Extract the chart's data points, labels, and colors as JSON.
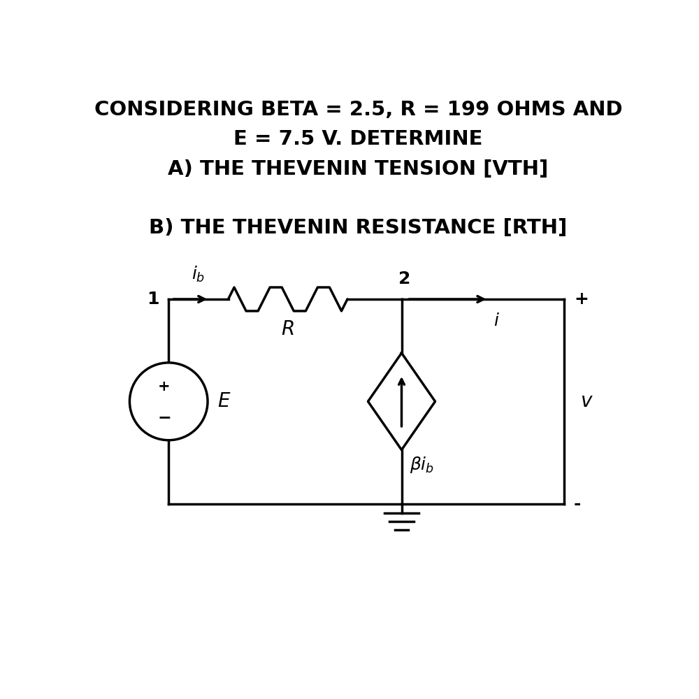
{
  "title_line1": "CONSIDERING BETA = 2.5, R = 199 OHMS AND",
  "title_line2": "E = 7.5 V. DETERMINE",
  "title_line3": "A) THE THEVENIN TENSION [VTH]",
  "title_line4": "B) THE THEVENIN RESISTANCE [RTH]",
  "bg_color": "#ffffff",
  "text_color": "#000000",
  "title_fontsize": 21,
  "subtitle_fontsize": 21,
  "circuit_linewidth": 2.5,
  "node1_label": "1",
  "node2_label": "2",
  "ib_label": "$i_b$",
  "R_label": "$R$",
  "i_label": "$i$",
  "E_label": "$E$",
  "plus_label": "+",
  "minus_label": "-",
  "v_label": "$v$",
  "beta_label": "$\\beta i_b$"
}
